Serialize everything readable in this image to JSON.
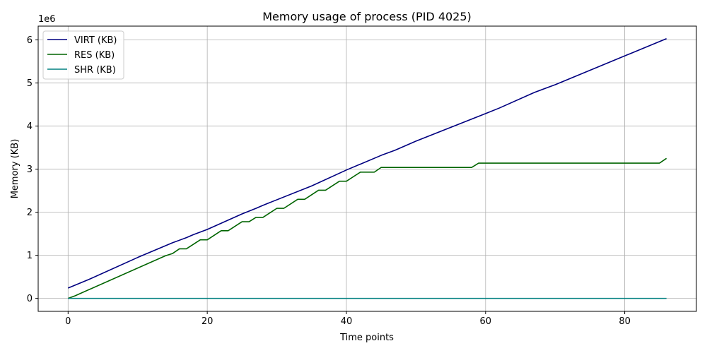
{
  "chart_data": {
    "type": "line",
    "title": "Memory usage of process (PID 4025)",
    "xlabel": "Time points",
    "ylabel": "Memory (KB)",
    "y_offset_label": "1e6",
    "xlim": [
      -4.3,
      90.3
    ],
    "ylim": [
      -0.301,
      6.32
    ],
    "xticks": [
      0,
      20,
      40,
      60,
      80
    ],
    "yticks": [
      0,
      1,
      2,
      3,
      4,
      5,
      6
    ],
    "grid": true,
    "legend_position": "upper-left",
    "series": [
      {
        "name": "VIRT (KB)",
        "color": "#000080",
        "points": [
          [
            0,
            0.24
          ],
          [
            3,
            0.44
          ],
          [
            10,
            0.95
          ],
          [
            15,
            1.29
          ],
          [
            17,
            1.41
          ],
          [
            18,
            1.48
          ],
          [
            20,
            1.6
          ],
          [
            25,
            1.96
          ],
          [
            27,
            2.09
          ],
          [
            28,
            2.16
          ],
          [
            35,
            2.61
          ],
          [
            40,
            2.98
          ],
          [
            45,
            3.32
          ],
          [
            46,
            3.38
          ],
          [
            47,
            3.44
          ],
          [
            50,
            3.65
          ],
          [
            55,
            3.97
          ],
          [
            60,
            4.29
          ],
          [
            62,
            4.42
          ],
          [
            67,
            4.78
          ],
          [
            69,
            4.9
          ],
          [
            70,
            4.96
          ],
          [
            86,
            6.03
          ]
        ]
      },
      {
        "name": "RES (KB)",
        "color": "#006400",
        "points": [
          [
            0,
            0.0
          ],
          [
            1,
            0.06
          ],
          [
            14,
            0.99
          ],
          [
            15,
            1.04
          ],
          [
            16,
            1.15
          ],
          [
            17,
            1.15
          ],
          [
            19,
            1.36
          ],
          [
            20,
            1.36
          ],
          [
            22,
            1.57
          ],
          [
            23,
            1.57
          ],
          [
            25,
            1.78
          ],
          [
            26,
            1.78
          ],
          [
            27,
            1.88
          ],
          [
            28,
            1.88
          ],
          [
            30,
            2.09
          ],
          [
            31,
            2.09
          ],
          [
            33,
            2.3
          ],
          [
            34,
            2.3
          ],
          [
            36,
            2.51
          ],
          [
            37,
            2.51
          ],
          [
            39,
            2.72
          ],
          [
            40,
            2.72
          ],
          [
            42,
            2.93
          ],
          [
            44,
            2.93
          ],
          [
            45,
            3.04
          ],
          [
            58,
            3.04
          ],
          [
            59,
            3.14
          ],
          [
            85,
            3.14
          ],
          [
            86,
            3.25
          ]
        ]
      },
      {
        "name": "SHR (KB)",
        "color": "#008080",
        "points": [
          [
            0,
            0.0
          ],
          [
            86,
            0.0
          ]
        ]
      }
    ]
  }
}
